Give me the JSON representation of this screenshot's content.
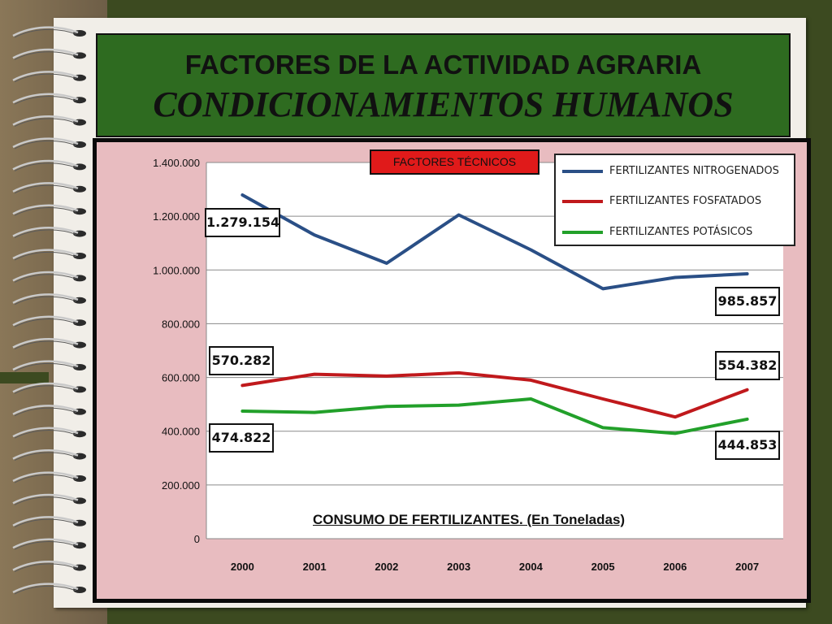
{
  "slide": {
    "title_line1": "FACTORES DE LA ACTIVIDAD AGRARIA",
    "title_line2": "CONDICIONAMIENTOS HUMANOS",
    "badge": "FACTORES TÉCNICOS"
  },
  "colors": {
    "background": "#3c4a20",
    "title_box": "#2e6b20",
    "chart_frame": "#e8bcc0",
    "badge": "#e01a1a",
    "nitrogenados": "#2a4f86",
    "fosfatados": "#c0191c",
    "potasicos": "#22a02a"
  },
  "chart_data": {
    "type": "line",
    "title": "CONSUMO DE FERTILIZANTES. (En Toneladas)",
    "xlabel": "",
    "ylabel": "",
    "categories": [
      "2000",
      "2001",
      "2002",
      "2003",
      "2004",
      "2005",
      "2006",
      "2007"
    ],
    "ylim": [
      0,
      1400000
    ],
    "yticks": [
      "0",
      "200.000",
      "400.000",
      "600.000",
      "800.000",
      "1.000.000",
      "1.200.000",
      "1.400.000"
    ],
    "ytick_values": [
      0,
      200000,
      400000,
      600000,
      800000,
      1000000,
      1200000,
      1400000
    ],
    "grid": true,
    "legend_position": "top-right",
    "series": [
      {
        "name": "FERTILIZANTES NITROGENADOS",
        "color": "#2a4f86",
        "values": [
          1279154,
          1130000,
          1025000,
          1205000,
          1075000,
          930000,
          972000,
          985857
        ]
      },
      {
        "name": "FERTILIZANTES FOSFATADOS",
        "color": "#c0191c",
        "values": [
          570282,
          612000,
          605000,
          617000,
          590000,
          520000,
          453000,
          554382
        ]
      },
      {
        "name": "FERTILIZANTES POTÁSICOS",
        "color": "#22a02a",
        "values": [
          474822,
          470000,
          492000,
          497000,
          520000,
          413000,
          392000,
          444853
        ]
      }
    ],
    "annotations": [
      {
        "text": "1.279.154"
      },
      {
        "text": "985.857"
      },
      {
        "text": "570.282"
      },
      {
        "text": "554.382"
      },
      {
        "text": "474.822"
      },
      {
        "text": "444.853"
      }
    ]
  }
}
